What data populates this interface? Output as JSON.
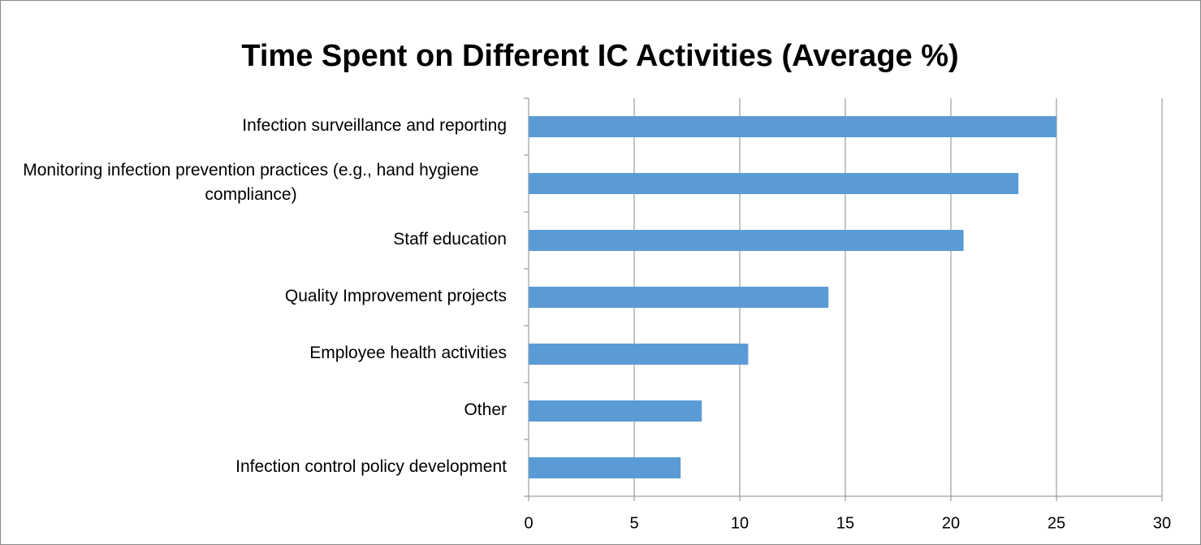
{
  "chart_data": {
    "type": "bar",
    "orientation": "horizontal",
    "title": "Time Spent on Different IC Activities (Average %)",
    "categories": [
      "Infection surveillance and reporting",
      "Monitoring infection prevention practices (e.g., hand hygiene compliance)",
      "Staff education",
      "Quality Improvement projects",
      "Employee health activities",
      "Other",
      "Infection control policy development"
    ],
    "values": [
      25,
      23.2,
      20.6,
      14.2,
      10.4,
      8.2,
      7.2
    ],
    "color": "#5b9bd5",
    "xlim": [
      0,
      30
    ],
    "xticks": [
      0,
      5,
      10,
      15,
      20,
      25,
      30
    ],
    "grid": true
  }
}
